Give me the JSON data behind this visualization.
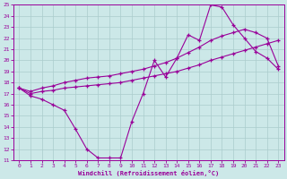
{
  "xlabel": "Windchill (Refroidissement éolien,°C)",
  "xlim": [
    -0.5,
    23.5
  ],
  "ylim": [
    11,
    25
  ],
  "xticks": [
    0,
    1,
    2,
    3,
    4,
    5,
    6,
    7,
    8,
    9,
    10,
    11,
    12,
    13,
    14,
    15,
    16,
    17,
    18,
    19,
    20,
    21,
    22,
    23
  ],
  "yticks": [
    11,
    12,
    13,
    14,
    15,
    16,
    17,
    18,
    19,
    20,
    21,
    22,
    23,
    24,
    25
  ],
  "bg_color": "#cce8e8",
  "grid_color": "#aacccc",
  "line_color": "#990099",
  "line1_x": [
    0,
    1,
    2,
    3,
    4,
    5,
    6,
    7,
    8,
    9,
    10,
    11,
    12,
    13,
    14,
    15,
    16,
    17,
    18,
    19,
    20,
    21,
    22,
    23
  ],
  "line1_y": [
    17.5,
    16.8,
    16.5,
    16.0,
    15.5,
    13.8,
    12.0,
    11.2,
    11.2,
    11.2,
    14.5,
    17.0,
    20.0,
    18.5,
    20.2,
    22.3,
    21.8,
    25.0,
    24.8,
    23.2,
    22.0,
    20.8,
    20.2,
    19.2
  ],
  "line2_x": [
    0,
    1,
    2,
    3,
    4,
    5,
    6,
    7,
    8,
    9,
    10,
    11,
    12,
    13,
    14,
    15,
    16,
    17,
    18,
    19,
    20,
    21,
    22,
    23
  ],
  "line2_y": [
    17.5,
    17.2,
    17.5,
    17.7,
    18.0,
    18.2,
    18.4,
    18.5,
    18.6,
    18.8,
    19.0,
    19.2,
    19.5,
    19.8,
    20.2,
    20.7,
    21.2,
    21.8,
    22.2,
    22.5,
    22.8,
    22.5,
    22.0,
    19.5
  ],
  "line3_x": [
    0,
    1,
    2,
    3,
    4,
    5,
    6,
    7,
    8,
    9,
    10,
    11,
    12,
    13,
    14,
    15,
    16,
    17,
    18,
    19,
    20,
    21,
    22,
    23
  ],
  "line3_y": [
    17.5,
    17.0,
    17.2,
    17.3,
    17.5,
    17.6,
    17.7,
    17.8,
    17.9,
    18.0,
    18.2,
    18.4,
    18.6,
    18.8,
    19.0,
    19.3,
    19.6,
    20.0,
    20.3,
    20.6,
    20.9,
    21.2,
    21.5,
    21.8
  ]
}
